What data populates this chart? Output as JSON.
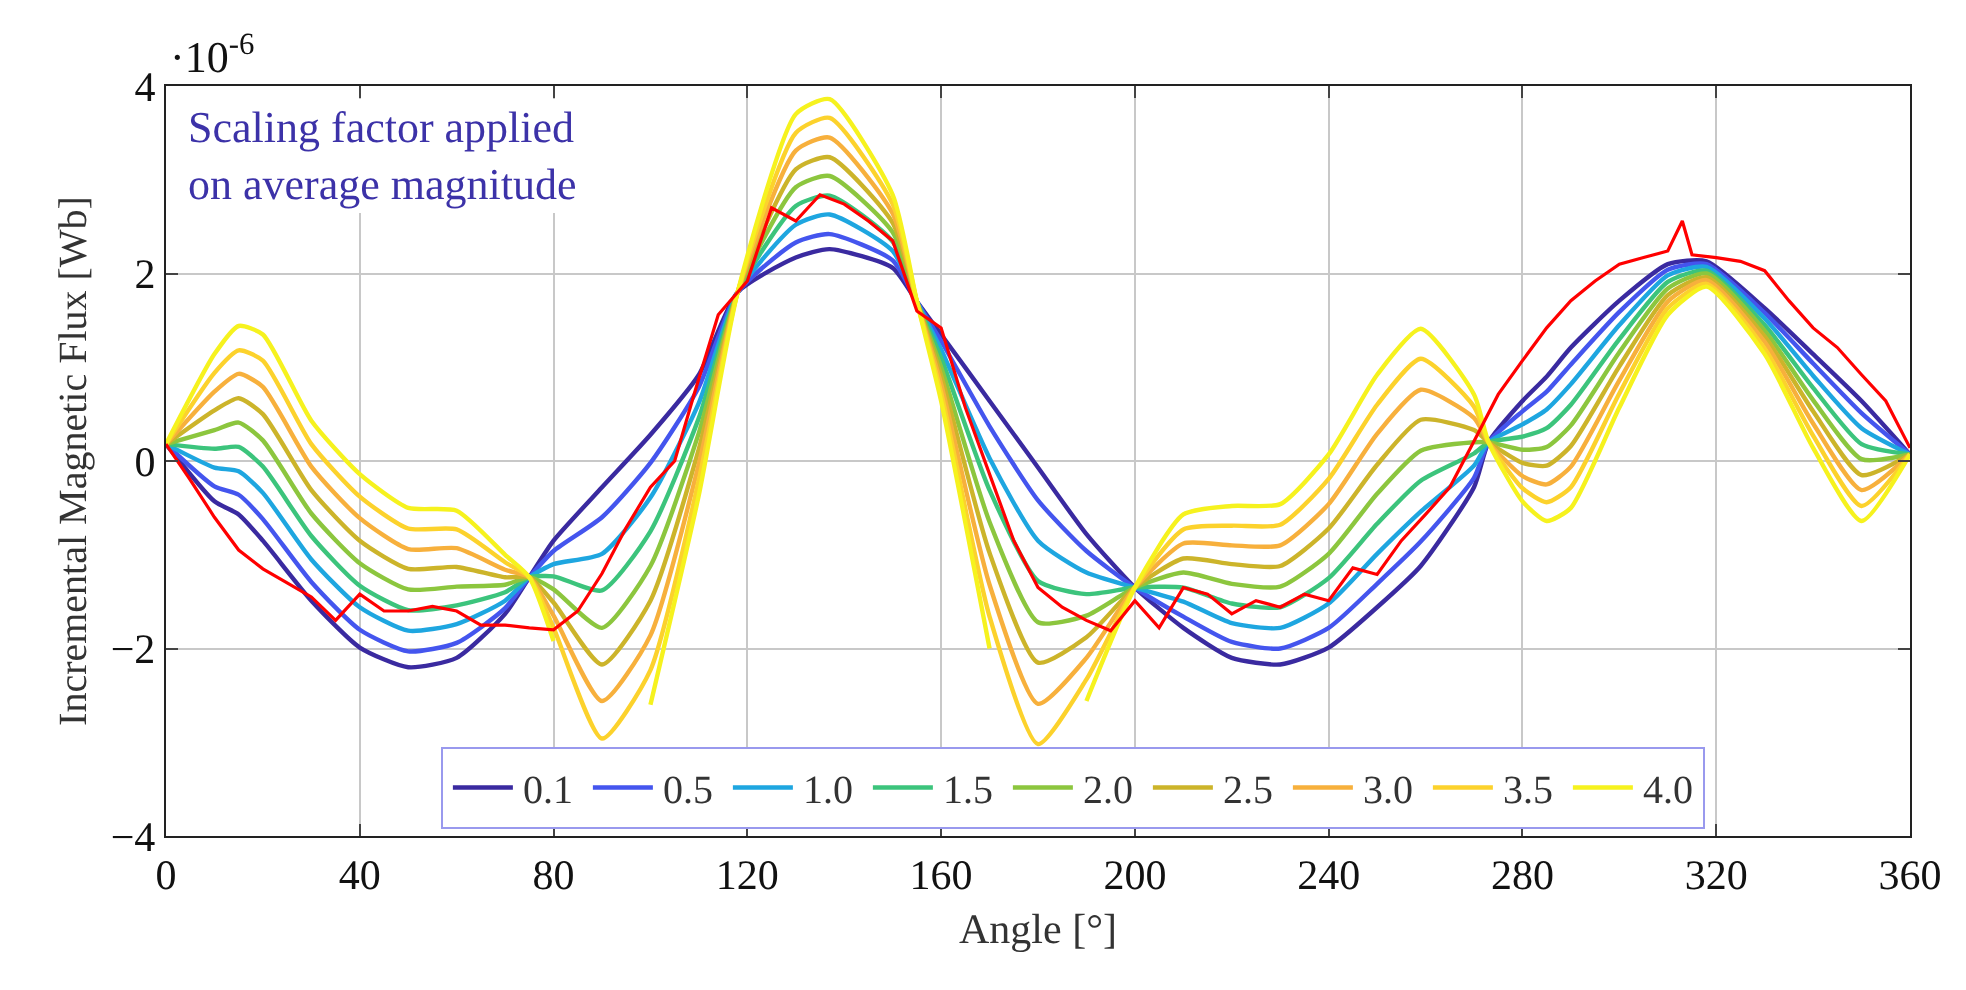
{
  "chart_data": {
    "type": "line",
    "xlabel": "Angle [°]",
    "ylabel": "Incremental Magnetic Flux [Wb]",
    "annotations": [
      "·10$^{-6}$",
      "Scaling factor applied\non average magnitude"
    ],
    "x": [
      0,
      10,
      15,
      20,
      30,
      40,
      50,
      60,
      70,
      75,
      80,
      90,
      100,
      110,
      118,
      130,
      137,
      150,
      155,
      160,
      170,
      180,
      190,
      200,
      210,
      220,
      230,
      240,
      250,
      259,
      270,
      273,
      280,
      285,
      290,
      300,
      310,
      318,
      330,
      340,
      350,
      360
    ],
    "xlim": [
      0,
      360
    ],
    "xticks": [
      0,
      40,
      80,
      120,
      160,
      200,
      240,
      280,
      320,
      360
    ],
    "ylim": [
      -4,
      4
    ],
    "yticks": [
      -4,
      -2,
      0,
      2,
      4
    ],
    "grid": true,
    "legend": "bottom",
    "marker": "none",
    "line_style": "solid",
    "series": [
      {
        "name": "0.1",
        "color": "#3a2aa0",
        "values": [
          0.18,
          -0.43,
          -0.57,
          -0.85,
          -1.49,
          -1.99,
          -2.2,
          -2.1,
          -1.63,
          -1.24,
          -0.85,
          -0.28,
          0.28,
          0.92,
          1.8,
          2.17,
          2.26,
          2.06,
          1.7,
          1.35,
          0.64,
          -0.07,
          -0.78,
          -1.35,
          -1.78,
          -2.1,
          -2.17,
          -1.99,
          -1.56,
          -1.12,
          -0.28,
          0.2,
          0.64,
          0.9,
          1.21,
          1.71,
          2.1,
          2.13,
          1.63,
          1.14,
          0.64,
          0.07
        ]
      },
      {
        "name": "0.5",
        "color": "#4455ee",
        "values": [
          0.18,
          -0.27,
          -0.36,
          -0.62,
          -1.29,
          -1.8,
          -2.03,
          -1.94,
          -1.57,
          -1.24,
          -0.96,
          -0.6,
          -0.02,
          0.79,
          1.8,
          2.33,
          2.42,
          2.14,
          1.7,
          1.28,
          0.37,
          -0.42,
          -0.96,
          -1.35,
          -1.66,
          -1.93,
          -2.0,
          -1.78,
          -1.31,
          -0.86,
          -0.18,
          0.2,
          0.53,
          0.74,
          1.03,
          1.59,
          2.04,
          2.1,
          1.58,
          1.04,
          0.51,
          0.07
        ]
      },
      {
        "name": "1.0",
        "color": "#1ea6e0",
        "values": [
          0.18,
          -0.07,
          -0.11,
          -0.34,
          -1.05,
          -1.56,
          -1.81,
          -1.74,
          -1.49,
          -1.24,
          -1.1,
          -0.99,
          -0.39,
          0.62,
          1.8,
          2.52,
          2.63,
          2.24,
          1.7,
          1.19,
          0.03,
          -0.85,
          -1.19,
          -1.35,
          -1.5,
          -1.73,
          -1.78,
          -1.52,
          -0.99,
          -0.54,
          -0.05,
          0.2,
          0.39,
          0.55,
          0.82,
          1.45,
          1.98,
          2.07,
          1.52,
          0.91,
          0.35,
          0.07
        ]
      },
      {
        "name": "1.5",
        "color": "#3cc47c",
        "values": [
          0.18,
          0.13,
          0.15,
          -0.06,
          -0.8,
          -1.33,
          -1.59,
          -1.54,
          -1.4,
          -1.24,
          -1.23,
          -1.38,
          -0.75,
          0.46,
          1.8,
          2.72,
          2.83,
          2.34,
          1.7,
          1.1,
          -0.31,
          -1.28,
          -1.42,
          -1.35,
          -1.35,
          -1.52,
          -1.56,
          -1.25,
          -0.67,
          -0.21,
          0.08,
          0.2,
          0.26,
          0.35,
          0.6,
          1.3,
          1.91,
          2.03,
          1.45,
          0.78,
          0.18,
          0.07
        ]
      },
      {
        "name": "2.0",
        "color": "#8cc63e",
        "values": [
          0.18,
          0.33,
          0.41,
          0.22,
          -0.56,
          -1.09,
          -1.37,
          -1.34,
          -1.32,
          -1.24,
          -1.37,
          -1.78,
          -1.12,
          0.3,
          1.8,
          2.92,
          3.04,
          2.44,
          1.7,
          1.0,
          -0.65,
          -1.72,
          -1.65,
          -1.35,
          -1.19,
          -1.31,
          -1.34,
          -0.99,
          -0.35,
          0.11,
          0.2,
          0.2,
          0.12,
          0.15,
          0.38,
          1.16,
          1.84,
          2.0,
          1.39,
          0.65,
          0.02,
          0.07
        ]
      },
      {
        "name": "2.5",
        "color": "#ccb42a",
        "values": [
          0.18,
          0.54,
          0.67,
          0.5,
          -0.31,
          -0.85,
          -1.15,
          -1.13,
          -1.24,
          -1.24,
          -1.51,
          -2.17,
          -1.49,
          0.13,
          1.8,
          3.11,
          3.24,
          2.54,
          1.7,
          0.91,
          -0.98,
          -2.15,
          -1.88,
          -1.35,
          -1.04,
          -1.1,
          -1.12,
          -0.72,
          -0.04,
          0.44,
          0.33,
          0.2,
          -0.02,
          -0.05,
          0.16,
          1.01,
          1.77,
          1.96,
          1.33,
          0.53,
          -0.15,
          0.07
        ]
      },
      {
        "name": "3.0",
        "color": "#f7b03c",
        "values": [
          0.18,
          0.74,
          0.93,
          0.79,
          -0.06,
          -0.61,
          -0.94,
          -0.93,
          -1.16,
          -1.24,
          -1.65,
          -2.56,
          -1.86,
          -0.03,
          1.8,
          3.31,
          3.45,
          2.64,
          1.7,
          0.82,
          -1.32,
          -2.59,
          -2.1,
          -1.35,
          -0.88,
          -0.9,
          -0.9,
          -0.46,
          0.29,
          0.76,
          0.46,
          0.2,
          -0.16,
          -0.25,
          -0.06,
          0.86,
          1.7,
          1.93,
          1.27,
          0.4,
          -0.31,
          0.07
        ]
      },
      {
        "name": "3.5",
        "color": "#fcd22c",
        "values": [
          0.18,
          0.94,
          1.18,
          1.07,
          0.18,
          -0.38,
          -0.72,
          -0.73,
          -1.08,
          -1.24,
          -1.78,
          -2.96,
          -2.23,
          -0.2,
          1.8,
          3.5,
          3.66,
          2.74,
          1.7,
          0.73,
          -1.66,
          -3.02,
          -2.33,
          -1.35,
          -0.73,
          -0.69,
          -0.68,
          -0.19,
          0.6,
          1.09,
          0.58,
          0.2,
          -0.29,
          -0.44,
          -0.28,
          0.72,
          1.63,
          1.89,
          1.2,
          0.27,
          -0.48,
          0.07
        ]
      },
      {
        "name": "4.0",
        "color": "#f6f21e",
        "values": [
          0.18,
          1.14,
          1.44,
          1.35,
          0.43,
          -0.14,
          -0.5,
          -0.53,
          -1.0,
          -1.24,
          -1.92,
          null,
          -2.6,
          -0.36,
          1.8,
          3.7,
          3.86,
          2.84,
          1.7,
          0.64,
          -2.0,
          null,
          -2.56,
          -1.35,
          -0.57,
          -0.48,
          -0.46,
          0.07,
          0.92,
          1.41,
          0.71,
          0.2,
          -0.43,
          -0.64,
          -0.5,
          0.57,
          1.56,
          1.86,
          1.14,
          0.14,
          -0.64,
          0.07
        ]
      },
      {
        "color": "#ff0000",
        "x": [
          0,
          5,
          10,
          15,
          20,
          25,
          30,
          35,
          40,
          45,
          50,
          55,
          60,
          65,
          70,
          75,
          80,
          85,
          90,
          95,
          100,
          105,
          109,
          114,
          120,
          125,
          130,
          135,
          140,
          145,
          150,
          155,
          160,
          165,
          170,
          175,
          180,
          185,
          190,
          195,
          200,
          205,
          210,
          215,
          220,
          225,
          230,
          235,
          240,
          245,
          250,
          255,
          260,
          265,
          270,
          275,
          280,
          285,
          290,
          295,
          300,
          305,
          310,
          313,
          315,
          320,
          325,
          330,
          335,
          340,
          345,
          350,
          355,
          360
        ],
        "values": [
          0.18,
          -0.2,
          -0.6,
          -0.95,
          -1.15,
          -1.3,
          -1.45,
          -1.7,
          -1.42,
          -1.6,
          -1.6,
          -1.55,
          -1.6,
          -1.75,
          -1.75,
          -1.78,
          -1.8,
          -1.6,
          -1.2,
          -0.71,
          -0.28,
          0.0,
          0.71,
          1.56,
          1.92,
          2.7,
          2.56,
          2.84,
          2.74,
          2.56,
          2.35,
          1.6,
          1.42,
          0.57,
          -0.14,
          -0.85,
          -1.35,
          -1.56,
          -1.7,
          -1.81,
          -1.49,
          -1.78,
          -1.35,
          -1.42,
          -1.63,
          -1.49,
          -1.56,
          -1.42,
          -1.49,
          -1.14,
          -1.21,
          -0.85,
          -0.57,
          -0.28,
          0.21,
          0.71,
          1.07,
          1.42,
          1.71,
          1.92,
          2.1,
          2.17,
          2.24,
          2.56,
          2.2,
          2.17,
          2.13,
          2.03,
          1.71,
          1.42,
          1.21,
          0.92,
          0.64,
          0.14
        ]
      }
    ]
  }
}
